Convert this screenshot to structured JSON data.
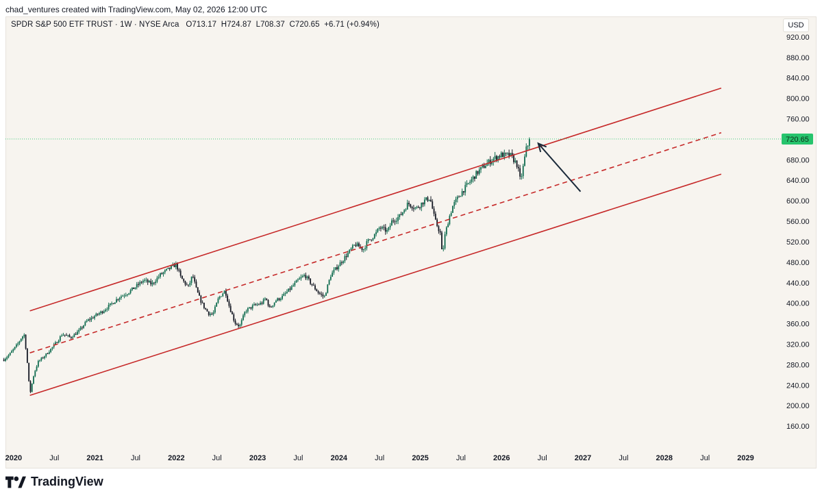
{
  "header": {
    "caption": "chad_ventures created with TradingView.com, May 02, 2026 12:00 UTC"
  },
  "legend": {
    "symbol": "SPDR S&P 500 ETF TRUST · 1W · NYSE Arca",
    "open_label": "O",
    "open": "713.17",
    "high_label": "H",
    "high": "724.87",
    "low_label": "L",
    "low": "708.37",
    "close_label": "C",
    "close": "720.65",
    "change": "+6.71 (+0.94%)"
  },
  "currency": "USD",
  "colors": {
    "candle_up": "#0e6b4e",
    "candle_down": "#131722",
    "channel": "#c62828",
    "last_price_badge": "#26c46d",
    "arrow": "#1b2a3a",
    "background": "#f7f4ef"
  },
  "footer": {
    "brand": "TradingView",
    "icon": "tradingview-logo-icon"
  },
  "chart_data": {
    "type": "candlestick",
    "interval": "1W",
    "ylim": [
      120,
      960
    ],
    "xlim": [
      2019.9,
      2029.4
    ],
    "y_ticks": [
      "920.00",
      "880.00",
      "840.00",
      "800.00",
      "760.00",
      "680.00",
      "640.00",
      "600.00",
      "560.00",
      "520.00",
      "480.00",
      "440.00",
      "400.00",
      "360.00",
      "320.00",
      "280.00",
      "240.00",
      "200.00",
      "160.00"
    ],
    "x_ticks": [
      {
        "label": "2020",
        "x": 2020.0,
        "major": true
      },
      {
        "label": "Jul",
        "x": 2020.5,
        "major": false
      },
      {
        "label": "2021",
        "x": 2021.0,
        "major": true
      },
      {
        "label": "Jul",
        "x": 2021.5,
        "major": false
      },
      {
        "label": "2022",
        "x": 2022.0,
        "major": true
      },
      {
        "label": "Jul",
        "x": 2022.5,
        "major": false
      },
      {
        "label": "2023",
        "x": 2023.0,
        "major": true
      },
      {
        "label": "Jul",
        "x": 2023.5,
        "major": false
      },
      {
        "label": "2024",
        "x": 2024.0,
        "major": true
      },
      {
        "label": "Jul",
        "x": 2024.5,
        "major": false
      },
      {
        "label": "2025",
        "x": 2025.0,
        "major": true
      },
      {
        "label": "Jul",
        "x": 2025.5,
        "major": false
      },
      {
        "label": "2026",
        "x": 2026.0,
        "major": true
      },
      {
        "label": "Jul",
        "x": 2026.5,
        "major": false
      },
      {
        "label": "2027",
        "x": 2027.0,
        "major": true
      },
      {
        "label": "Jul",
        "x": 2027.5,
        "major": false
      },
      {
        "label": "2028",
        "x": 2028.0,
        "major": true
      },
      {
        "label": "Jul",
        "x": 2028.5,
        "major": false
      },
      {
        "label": "2029",
        "x": 2029.0,
        "major": true
      }
    ],
    "last_price": 720.65,
    "last_price_label": "720.65",
    "price_path": [
      [
        2019.88,
        290
      ],
      [
        2019.95,
        300
      ],
      [
        2020.05,
        320
      ],
      [
        2020.1,
        334
      ],
      [
        2020.13,
        338
      ],
      [
        2020.16,
        300
      ],
      [
        2020.2,
        222
      ],
      [
        2020.25,
        262
      ],
      [
        2020.3,
        285
      ],
      [
        2020.4,
        300
      ],
      [
        2020.5,
        318
      ],
      [
        2020.6,
        340
      ],
      [
        2020.7,
        333
      ],
      [
        2020.8,
        345
      ],
      [
        2020.9,
        365
      ],
      [
        2021.0,
        375
      ],
      [
        2021.1,
        385
      ],
      [
        2021.2,
        398
      ],
      [
        2021.3,
        412
      ],
      [
        2021.4,
        420
      ],
      [
        2021.5,
        432
      ],
      [
        2021.6,
        445
      ],
      [
        2021.7,
        437
      ],
      [
        2021.8,
        455
      ],
      [
        2021.9,
        466
      ],
      [
        2022.0,
        476
      ],
      [
        2022.05,
        452
      ],
      [
        2022.1,
        440
      ],
      [
        2022.15,
        432
      ],
      [
        2022.2,
        455
      ],
      [
        2022.25,
        425
      ],
      [
        2022.3,
        405
      ],
      [
        2022.35,
        390
      ],
      [
        2022.4,
        380
      ],
      [
        2022.45,
        378
      ],
      [
        2022.52,
        410
      ],
      [
        2022.6,
        425
      ],
      [
        2022.65,
        395
      ],
      [
        2022.72,
        362
      ],
      [
        2022.78,
        355
      ],
      [
        2022.85,
        385
      ],
      [
        2022.95,
        395
      ],
      [
        2023.05,
        400
      ],
      [
        2023.1,
        410
      ],
      [
        2023.15,
        390
      ],
      [
        2023.22,
        405
      ],
      [
        2023.3,
        412
      ],
      [
        2023.4,
        428
      ],
      [
        2023.5,
        445
      ],
      [
        2023.58,
        455
      ],
      [
        2023.65,
        440
      ],
      [
        2023.75,
        420
      ],
      [
        2023.82,
        412
      ],
      [
        2023.9,
        455
      ],
      [
        2024.0,
        475
      ],
      [
        2024.1,
        495
      ],
      [
        2024.2,
        515
      ],
      [
        2024.3,
        505
      ],
      [
        2024.35,
        520
      ],
      [
        2024.45,
        535
      ],
      [
        2024.5,
        548
      ],
      [
        2024.6,
        540
      ],
      [
        2024.65,
        560
      ],
      [
        2024.75,
        570
      ],
      [
        2024.85,
        595
      ],
      [
        2024.95,
        585
      ],
      [
        2025.05,
        600
      ],
      [
        2025.12,
        606
      ],
      [
        2025.18,
        562
      ],
      [
        2025.25,
        535
      ],
      [
        2025.27,
        490
      ],
      [
        2025.3,
        530
      ],
      [
        2025.35,
        565
      ],
      [
        2025.4,
        590
      ],
      [
        2025.5,
        615
      ],
      [
        2025.6,
        635
      ],
      [
        2025.7,
        655
      ],
      [
        2025.8,
        670
      ],
      [
        2025.9,
        682
      ],
      [
        2026.0,
        690
      ],
      [
        2026.05,
        688
      ],
      [
        2026.1,
        690
      ],
      [
        2026.15,
        680
      ],
      [
        2026.2,
        668
      ],
      [
        2026.22,
        640
      ],
      [
        2026.25,
        652
      ],
      [
        2026.28,
        680
      ],
      [
        2026.3,
        700
      ],
      [
        2026.33,
        712
      ],
      [
        2026.35,
        720.65
      ]
    ],
    "channel": {
      "upper": [
        [
          2020.2,
          385
        ],
        [
          2028.7,
          820
        ]
      ],
      "middle": [
        [
          2020.2,
          303
        ],
        [
          2028.7,
          733
        ]
      ],
      "lower": [
        [
          2020.2,
          220
        ],
        [
          2028.7,
          652
        ]
      ]
    },
    "annotation_arrow": {
      "from": [
        2026.97,
        618
      ],
      "to": [
        2026.45,
        712
      ]
    }
  }
}
